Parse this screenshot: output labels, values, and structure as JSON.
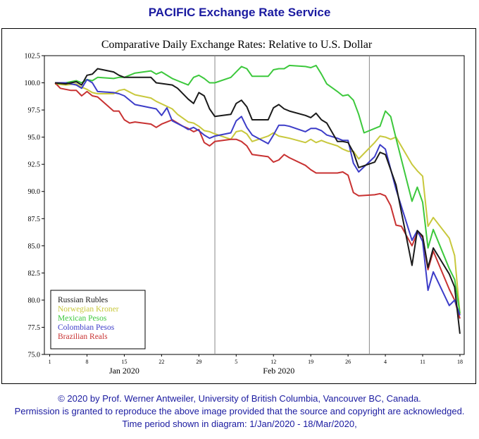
{
  "page": {
    "title": "PACIFIC Exchange Rate Service",
    "footer_line1": "© 2020 by Prof. Werner Antweiler, University of British Columbia, Vancouver BC, Canada.",
    "footer_line2": "Permission is granted to reproduce the above image provided that the source and copyright are acknowledged.",
    "footer_line3": "Time period shown in diagram: 1/Jan/2020 - 18/Mar/2020,"
  },
  "chart_data": {
    "type": "line",
    "title": "Comparative Daily Exchange Rates: Relative to U.S. Dollar",
    "xlabel": "",
    "ylabel": "",
    "ylim": [
      75.0,
      102.5
    ],
    "y_ticks": [
      "102.5",
      "100.0",
      "97.5",
      "95.0",
      "92.5",
      "90.0",
      "87.5",
      "85.0",
      "82.5",
      "80.0",
      "77.5",
      "75.0"
    ],
    "x_ticks": [
      {
        "label": "1",
        "day": 1
      },
      {
        "label": "8",
        "day": 8
      },
      {
        "label": "15",
        "day": 15
      },
      {
        "label": "22",
        "day": 22
      },
      {
        "label": "29",
        "day": 29
      },
      {
        "label": "5",
        "day": 36
      },
      {
        "label": "12",
        "day": 43
      },
      {
        "label": "19",
        "day": 50
      },
      {
        "label": "26",
        "day": 57
      },
      {
        "label": "4",
        "day": 64
      },
      {
        "label": "11",
        "day": 71
      },
      {
        "label": "18",
        "day": 78
      }
    ],
    "month_labels": [
      {
        "label": "Jan 2020",
        "day": 15
      },
      {
        "label": "Feb 2020",
        "day": 44
      }
    ],
    "month_dividers": [
      32,
      61
    ],
    "grid": false,
    "legend_position": "bottom-left",
    "series": [
      {
        "name": "Russian Rubles",
        "color": "#1a1a1a",
        "points": [
          [
            2,
            100.0
          ],
          [
            4,
            99.9
          ],
          [
            6,
            100.1
          ],
          [
            7,
            99.8
          ],
          [
            8,
            100.7
          ],
          [
            9,
            100.8
          ],
          [
            10,
            101.3
          ],
          [
            13,
            101.0
          ],
          [
            14,
            100.7
          ],
          [
            15,
            100.5
          ],
          [
            17,
            100.5
          ],
          [
            20,
            100.5
          ],
          [
            21,
            100.0
          ],
          [
            24,
            99.8
          ],
          [
            25,
            99.5
          ],
          [
            27,
            98.5
          ],
          [
            28,
            98.1
          ],
          [
            29,
            99.1
          ],
          [
            30,
            98.8
          ],
          [
            31,
            97.6
          ],
          [
            32,
            96.9
          ],
          [
            35,
            97.1
          ],
          [
            36,
            98.1
          ],
          [
            37,
            98.4
          ],
          [
            38,
            97.8
          ],
          [
            39,
            96.6
          ],
          [
            42,
            96.6
          ],
          [
            43,
            97.7
          ],
          [
            44,
            98.0
          ],
          [
            45,
            97.6
          ],
          [
            46,
            97.4
          ],
          [
            49,
            97.0
          ],
          [
            50,
            96.8
          ],
          [
            51,
            97.2
          ],
          [
            52,
            96.6
          ],
          [
            53,
            96.3
          ],
          [
            55,
            94.6
          ],
          [
            56,
            94.6
          ],
          [
            57,
            94.5
          ],
          [
            58,
            93.6
          ],
          [
            59,
            92.2
          ],
          [
            62,
            92.7
          ],
          [
            63,
            93.6
          ],
          [
            64,
            93.4
          ],
          [
            66,
            90.6
          ],
          [
            69,
            83.2
          ],
          [
            70,
            86.4
          ],
          [
            71,
            85.9
          ],
          [
            72,
            83.0
          ],
          [
            73,
            84.8
          ],
          [
            76,
            82.4
          ],
          [
            77,
            81.2
          ],
          [
            78,
            76.9
          ]
        ]
      },
      {
        "name": "Norwegian Kroner",
        "color": "#c8c83c",
        "points": [
          [
            2,
            99.9
          ],
          [
            4,
            99.8
          ],
          [
            6,
            99.9
          ],
          [
            7,
            99.6
          ],
          [
            8,
            99.4
          ],
          [
            9,
            99.1
          ],
          [
            10,
            99.0
          ],
          [
            13,
            99.0
          ],
          [
            14,
            99.3
          ],
          [
            15,
            99.4
          ],
          [
            17,
            98.9
          ],
          [
            20,
            98.6
          ],
          [
            21,
            98.3
          ],
          [
            24,
            97.6
          ],
          [
            25,
            97.1
          ],
          [
            27,
            96.4
          ],
          [
            28,
            96.3
          ],
          [
            29,
            96.0
          ],
          [
            30,
            95.6
          ],
          [
            31,
            95.5
          ],
          [
            32,
            95.3
          ],
          [
            35,
            94.8
          ],
          [
            36,
            95.5
          ],
          [
            37,
            95.6
          ],
          [
            38,
            95.3
          ],
          [
            39,
            94.6
          ],
          [
            42,
            95.1
          ],
          [
            43,
            95.4
          ],
          [
            44,
            95.1
          ],
          [
            45,
            95.0
          ],
          [
            46,
            94.9
          ],
          [
            49,
            94.5
          ],
          [
            50,
            94.8
          ],
          [
            51,
            94.5
          ],
          [
            52,
            94.7
          ],
          [
            53,
            94.5
          ],
          [
            55,
            94.2
          ],
          [
            56,
            93.9
          ],
          [
            57,
            93.7
          ],
          [
            58,
            93.7
          ],
          [
            59,
            93.0
          ],
          [
            62,
            94.5
          ],
          [
            63,
            95.1
          ],
          [
            64,
            95.0
          ],
          [
            65,
            94.8
          ],
          [
            66,
            95.0
          ],
          [
            69,
            92.5
          ],
          [
            70,
            91.9
          ],
          [
            71,
            91.4
          ],
          [
            72,
            86.8
          ],
          [
            73,
            87.6
          ],
          [
            76,
            85.7
          ],
          [
            77,
            84.1
          ],
          [
            78,
            78.7
          ]
        ]
      },
      {
        "name": "Mexican Pesos",
        "color": "#3cc83c",
        "points": [
          [
            2,
            99.9
          ],
          [
            4,
            100.0
          ],
          [
            6,
            100.2
          ],
          [
            7,
            100.0
          ],
          [
            8,
            100.3
          ],
          [
            9,
            100.2
          ],
          [
            10,
            100.5
          ],
          [
            13,
            100.4
          ],
          [
            14,
            100.5
          ],
          [
            15,
            100.5
          ],
          [
            17,
            100.9
          ],
          [
            20,
            101.1
          ],
          [
            21,
            100.8
          ],
          [
            22,
            101.0
          ],
          [
            24,
            100.4
          ],
          [
            25,
            100.2
          ],
          [
            27,
            99.8
          ],
          [
            28,
            100.5
          ],
          [
            29,
            100.7
          ],
          [
            30,
            100.4
          ],
          [
            31,
            100.0
          ],
          [
            32,
            100.0
          ],
          [
            35,
            100.5
          ],
          [
            36,
            101.0
          ],
          [
            37,
            101.5
          ],
          [
            38,
            101.3
          ],
          [
            39,
            100.6
          ],
          [
            42,
            100.6
          ],
          [
            43,
            101.2
          ],
          [
            44,
            101.3
          ],
          [
            45,
            101.3
          ],
          [
            46,
            101.6
          ],
          [
            49,
            101.5
          ],
          [
            50,
            101.4
          ],
          [
            51,
            101.6
          ],
          [
            52,
            100.8
          ],
          [
            53,
            99.9
          ],
          [
            55,
            99.2
          ],
          [
            56,
            98.8
          ],
          [
            57,
            98.9
          ],
          [
            58,
            98.4
          ],
          [
            59,
            97.1
          ],
          [
            60,
            95.4
          ],
          [
            62,
            95.8
          ],
          [
            63,
            96.0
          ],
          [
            64,
            97.4
          ],
          [
            65,
            96.9
          ],
          [
            66,
            94.9
          ],
          [
            69,
            89.1
          ],
          [
            70,
            90.4
          ],
          [
            71,
            89.0
          ],
          [
            72,
            84.8
          ],
          [
            73,
            86.5
          ],
          [
            76,
            82.9
          ],
          [
            77,
            81.9
          ],
          [
            78,
            78.8
          ]
        ]
      },
      {
        "name": "Colombian Pesos",
        "color": "#3c3cc8",
        "points": [
          [
            2,
            100.0
          ],
          [
            4,
            100.0
          ],
          [
            6,
            99.8
          ],
          [
            7,
            99.5
          ],
          [
            8,
            100.3
          ],
          [
            9,
            100.0
          ],
          [
            10,
            99.2
          ],
          [
            13,
            99.1
          ],
          [
            14,
            99.0
          ],
          [
            15,
            98.8
          ],
          [
            17,
            98.0
          ],
          [
            20,
            97.7
          ],
          [
            21,
            97.6
          ],
          [
            22,
            97.0
          ],
          [
            23,
            97.7
          ],
          [
            24,
            96.5
          ],
          [
            26,
            96.0
          ],
          [
            27,
            95.7
          ],
          [
            28,
            95.9
          ],
          [
            29,
            95.6
          ],
          [
            30,
            95.2
          ],
          [
            31,
            94.9
          ],
          [
            32,
            95.1
          ],
          [
            35,
            95.4
          ],
          [
            36,
            96.5
          ],
          [
            37,
            96.9
          ],
          [
            38,
            95.9
          ],
          [
            39,
            95.2
          ],
          [
            42,
            94.4
          ],
          [
            43,
            95.2
          ],
          [
            44,
            96.1
          ],
          [
            45,
            96.1
          ],
          [
            46,
            96.0
          ],
          [
            49,
            95.5
          ],
          [
            50,
            95.8
          ],
          [
            51,
            95.8
          ],
          [
            52,
            95.6
          ],
          [
            53,
            95.2
          ],
          [
            55,
            94.9
          ],
          [
            56,
            94.7
          ],
          [
            57,
            94.7
          ],
          [
            58,
            92.6
          ],
          [
            59,
            91.8
          ],
          [
            62,
            93.2
          ],
          [
            63,
            94.3
          ],
          [
            64,
            93.9
          ],
          [
            66,
            90.2
          ],
          [
            69,
            85.5
          ],
          [
            70,
            86.4
          ],
          [
            71,
            85.4
          ],
          [
            72,
            80.9
          ],
          [
            73,
            82.6
          ],
          [
            76,
            79.5
          ],
          [
            77,
            80.0
          ],
          [
            78,
            78.6
          ]
        ]
      },
      {
        "name": "Brazilian Reals",
        "color": "#c83232",
        "points": [
          [
            2,
            100.0
          ],
          [
            3,
            99.5
          ],
          [
            5,
            99.3
          ],
          [
            6,
            99.3
          ],
          [
            7,
            98.8
          ],
          [
            8,
            99.2
          ],
          [
            9,
            98.8
          ],
          [
            10,
            98.7
          ],
          [
            13,
            97.4
          ],
          [
            14,
            97.4
          ],
          [
            15,
            96.6
          ],
          [
            16,
            96.3
          ],
          [
            17,
            96.4
          ],
          [
            20,
            96.2
          ],
          [
            21,
            95.9
          ],
          [
            22,
            96.2
          ],
          [
            23,
            96.4
          ],
          [
            24,
            96.6
          ],
          [
            26,
            96.0
          ],
          [
            27,
            95.8
          ],
          [
            28,
            95.5
          ],
          [
            29,
            95.7
          ],
          [
            30,
            94.5
          ],
          [
            31,
            94.2
          ],
          [
            32,
            94.6
          ],
          [
            35,
            94.8
          ],
          [
            36,
            94.8
          ],
          [
            37,
            94.6
          ],
          [
            38,
            94.2
          ],
          [
            39,
            93.4
          ],
          [
            42,
            93.2
          ],
          [
            43,
            92.7
          ],
          [
            44,
            92.9
          ],
          [
            45,
            93.4
          ],
          [
            46,
            93.1
          ],
          [
            49,
            92.4
          ],
          [
            50,
            92.0
          ],
          [
            51,
            91.7
          ],
          [
            52,
            91.7
          ],
          [
            53,
            91.7
          ],
          [
            55,
            91.7
          ],
          [
            56,
            91.8
          ],
          [
            57,
            91.5
          ],
          [
            58,
            89.9
          ],
          [
            59,
            89.6
          ],
          [
            62,
            89.7
          ],
          [
            63,
            89.8
          ],
          [
            64,
            89.6
          ],
          [
            65,
            88.7
          ],
          [
            66,
            86.9
          ],
          [
            67,
            86.8
          ],
          [
            69,
            85.0
          ],
          [
            70,
            86.2
          ],
          [
            71,
            85.8
          ],
          [
            72,
            82.8
          ],
          [
            73,
            84.5
          ],
          [
            76,
            81.0
          ],
          [
            77,
            80.0
          ],
          [
            78,
            78.3
          ]
        ]
      }
    ]
  }
}
